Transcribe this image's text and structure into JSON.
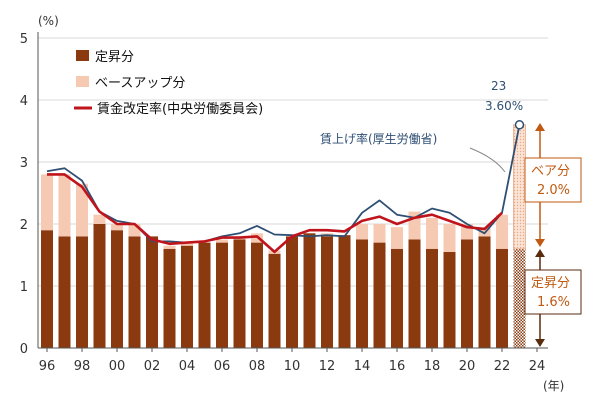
{
  "chart_data": {
    "type": "bar",
    "y_unit": "(%)",
    "x_unit": "(年)",
    "ylim": [
      0,
      5
    ],
    "y_ticks": [
      0,
      1,
      2,
      3,
      4,
      5
    ],
    "xlim": [
      95.5,
      24
    ],
    "x_tick_labels": [
      "96",
      "98",
      "00",
      "02",
      "04",
      "06",
      "08",
      "10",
      "12",
      "14",
      "16",
      "18",
      "20",
      "22",
      "24"
    ],
    "categories": [
      "96",
      "97",
      "98",
      "99",
      "00",
      "01",
      "02",
      "03",
      "04",
      "05",
      "06",
      "07",
      "08",
      "09",
      "10",
      "11",
      "12",
      "13",
      "14",
      "15",
      "16",
      "17",
      "18",
      "19",
      "20",
      "21",
      "22",
      "23"
    ],
    "legend": {
      "teisho": "定昇分",
      "baseup": "ベースアップ分",
      "chuo": "賃金改定率(中央労働委員会)"
    },
    "series": [
      {
        "key": "teisho",
        "name": "定昇分",
        "color": "#8b3a0f",
        "values": [
          1.9,
          1.8,
          1.8,
          2.0,
          1.9,
          1.8,
          1.8,
          1.6,
          1.65,
          1.7,
          1.7,
          1.75,
          1.7,
          1.52,
          1.8,
          1.85,
          1.8,
          1.82,
          1.75,
          1.7,
          1.6,
          1.75,
          1.6,
          1.55,
          1.75,
          1.8,
          1.6,
          1.6
        ]
      },
      {
        "key": "baseup",
        "name": "ベースアップ分",
        "color": "#f6c9b3",
        "values": [
          0.9,
          1.0,
          0.85,
          0.15,
          0.1,
          0.2,
          0.0,
          0.05,
          0.05,
          0.0,
          0.05,
          0.05,
          0.15,
          0.05,
          0.0,
          0.0,
          0.05,
          0.0,
          0.25,
          0.3,
          0.35,
          0.45,
          0.5,
          0.45,
          0.25,
          0.15,
          0.55,
          2.0
        ]
      },
      {
        "key": "chuo",
        "name": "賃金改定率(中央労働委員会)",
        "type": "line",
        "color": "#c0141c",
        "values": [
          2.8,
          2.8,
          2.6,
          2.2,
          2.0,
          2.0,
          1.75,
          1.68,
          1.7,
          1.72,
          1.78,
          1.78,
          1.8,
          1.55,
          1.8,
          1.9,
          1.9,
          1.88,
          2.05,
          2.12,
          2.0,
          2.1,
          2.15,
          2.05,
          1.95,
          1.92,
          2.18,
          null
        ]
      },
      {
        "key": "kosei",
        "name": "賃上げ率(厚生労働省)",
        "type": "line",
        "color": "#2f4f73",
        "values": [
          2.85,
          2.9,
          2.7,
          2.2,
          2.05,
          2.0,
          1.72,
          1.72,
          1.7,
          1.72,
          1.8,
          1.85,
          1.97,
          1.83,
          1.82,
          1.8,
          1.82,
          1.8,
          2.18,
          2.38,
          2.15,
          2.1,
          2.25,
          2.18,
          2.0,
          1.85,
          2.18,
          3.6
        ]
      }
    ],
    "annotations": {
      "highlight_year": "23",
      "highlight_value": "3.60%",
      "kosei_label": "賃上げ率(厚生労働省)",
      "bea_label": "ベア分",
      "bea_value": "2.0%",
      "teisho_label": "定昇分",
      "teisho_value": "1.6%"
    }
  }
}
